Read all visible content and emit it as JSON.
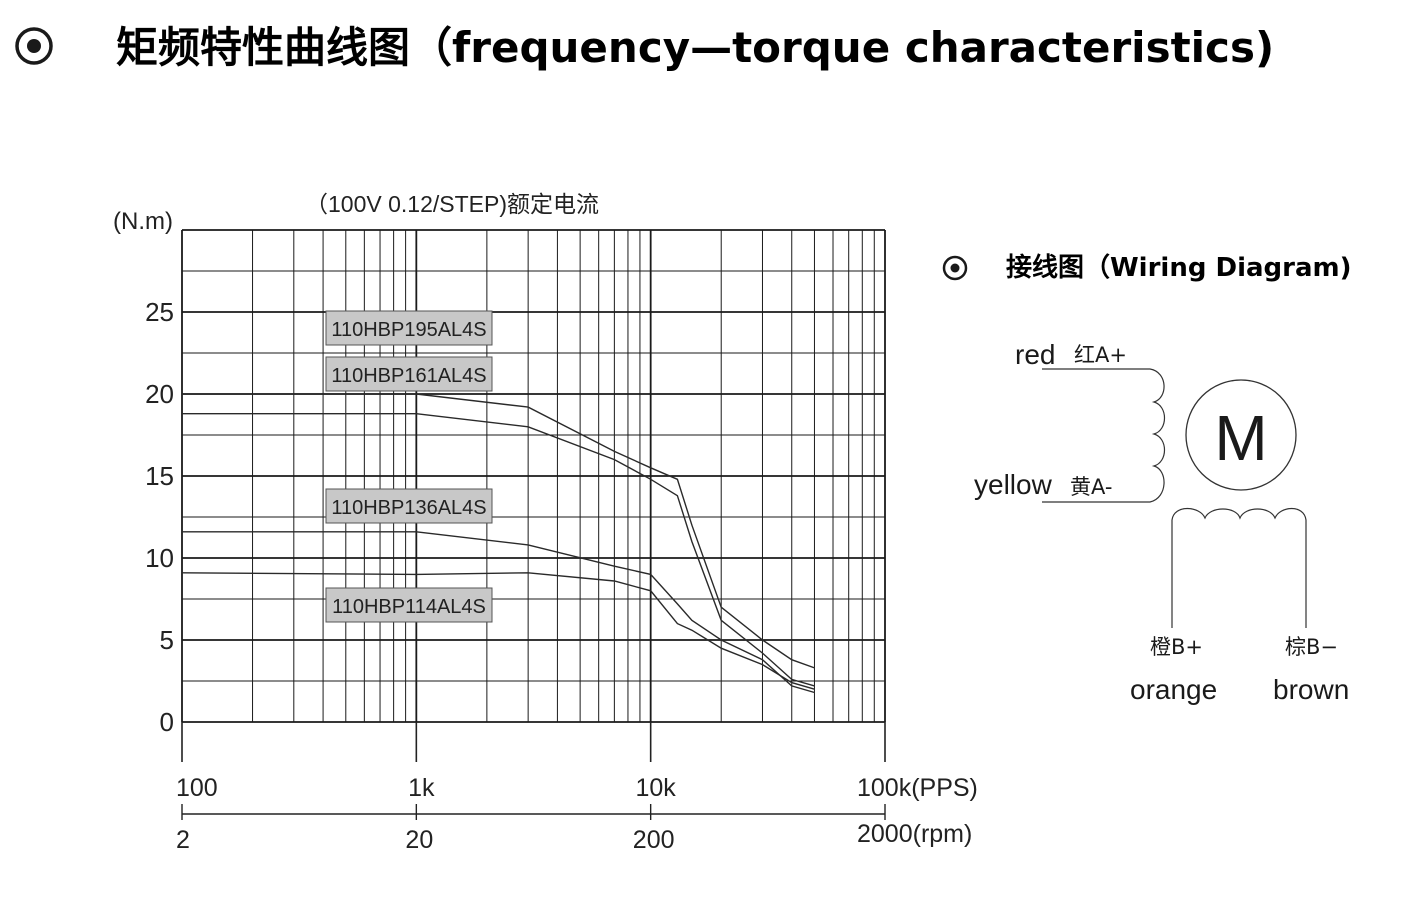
{
  "header": {
    "title": "矩频特性曲线图（frequency—torque characteristics)",
    "bullet_icon": "target-bullet-icon"
  },
  "wiring": {
    "title": "接线图（Wiring Diagram)",
    "motor_label": "M",
    "wires": [
      {
        "en": "red",
        "cn": "红A+"
      },
      {
        "en": "yellow",
        "cn": "黄A-"
      },
      {
        "cn": "橙B+",
        "en": "orange"
      },
      {
        "cn": "棕B−",
        "en": "brown"
      }
    ]
  },
  "chart_data": {
    "type": "line",
    "title": "（100V 0.12/STEP)额定电流",
    "ylabel": "(N.m)",
    "ylim": [
      0,
      30
    ],
    "yticks": [
      0,
      5,
      10,
      15,
      20,
      25
    ],
    "x_scale": "log",
    "xlim": [
      100,
      100000
    ],
    "xticks_pps": [
      {
        "value": 100,
        "label": "100"
      },
      {
        "value": 1000,
        "label": "1k"
      },
      {
        "value": 10000,
        "label": "10k"
      },
      {
        "value": 100000,
        "label": "100k(PPS)"
      }
    ],
    "xticks_rpm": [
      {
        "value": 100,
        "label": "2"
      },
      {
        "value": 1000,
        "label": "20"
      },
      {
        "value": 10000,
        "label": "200"
      },
      {
        "value": 100000,
        "label": "2000(rpm)"
      }
    ],
    "grid": true,
    "series": [
      {
        "name": "110HBP195AL4S",
        "x": [
          100,
          1000,
          3000,
          7000,
          10000,
          13000,
          15000,
          20000,
          30000,
          40000,
          50000
        ],
        "y": [
          20,
          20,
          19.2,
          16.5,
          15.5,
          14.8,
          12,
          7,
          5,
          3.8,
          3.3
        ]
      },
      {
        "name": "110HBP161AL4S",
        "x": [
          100,
          1000,
          3000,
          7000,
          10000,
          13000,
          15000,
          20000,
          30000,
          40000,
          50000
        ],
        "y": [
          18.8,
          18.8,
          18,
          16,
          14.8,
          13.8,
          11,
          6.2,
          4.2,
          2.6,
          2.2
        ]
      },
      {
        "name": "110HBP136AL4S",
        "x": [
          100,
          1000,
          3000,
          7000,
          10000,
          13000,
          15000,
          20000,
          30000,
          40000,
          50000
        ],
        "y": [
          11.6,
          11.6,
          10.8,
          9.5,
          9,
          7.2,
          6.2,
          5,
          3.8,
          2.2,
          1.8
        ]
      },
      {
        "name": "110HBP114AL4S",
        "x": [
          100,
          1000,
          3000,
          7000,
          10000,
          13000,
          15000,
          20000,
          30000,
          40000,
          50000
        ],
        "y": [
          9.1,
          9,
          9.1,
          8.6,
          8,
          6,
          5.6,
          4.5,
          3.5,
          2.4,
          2
        ]
      }
    ]
  }
}
